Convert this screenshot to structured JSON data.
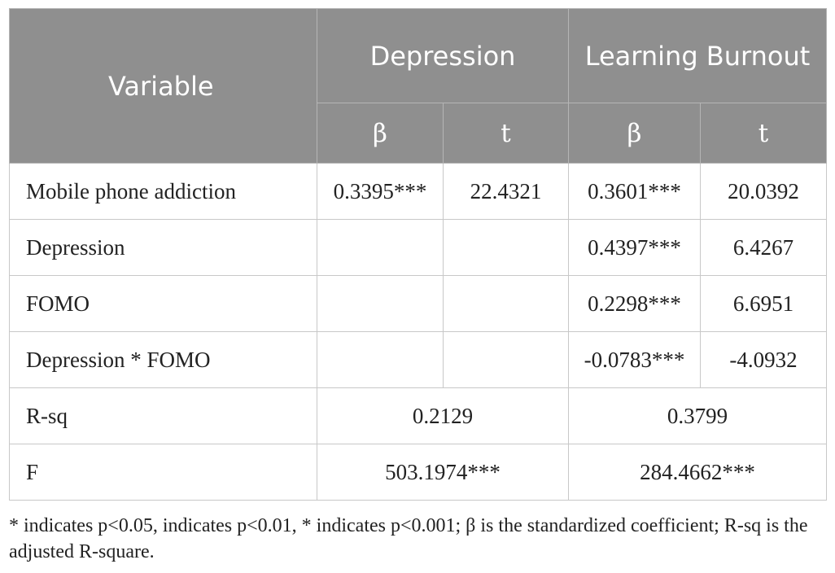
{
  "table": {
    "header": {
      "variable": "Variable",
      "depression": "Depression",
      "learning_burnout": "Learning Burnout",
      "beta": "β",
      "t": "t"
    },
    "rows": [
      {
        "label": "Mobile phone addiction",
        "dep_beta": "0.3395***",
        "dep_t": "22.4321",
        "lb_beta": "0.3601***",
        "lb_t": "20.0392"
      },
      {
        "label": "Depression",
        "dep_beta": "",
        "dep_t": "",
        "lb_beta": "0.4397***",
        "lb_t": "6.4267"
      },
      {
        "label": "FOMO",
        "dep_beta": "",
        "dep_t": "",
        "lb_beta": "0.2298***",
        "lb_t": "6.6951"
      },
      {
        "label": "Depression * FOMO",
        "dep_beta": "",
        "dep_t": "",
        "lb_beta": "-0.0783***",
        "lb_t": "-4.0932"
      }
    ],
    "summary_rows": [
      {
        "label": "R-sq",
        "dep": "0.2129",
        "lb": "0.3799"
      },
      {
        "label": "F",
        "dep": "503.1974***",
        "lb": "284.4662***"
      }
    ]
  },
  "footnote": "* indicates p<0.05, indicates p<0.01, * indicates p<0.001; β is the standardized coefficient; R-sq is the adjusted R-square."
}
